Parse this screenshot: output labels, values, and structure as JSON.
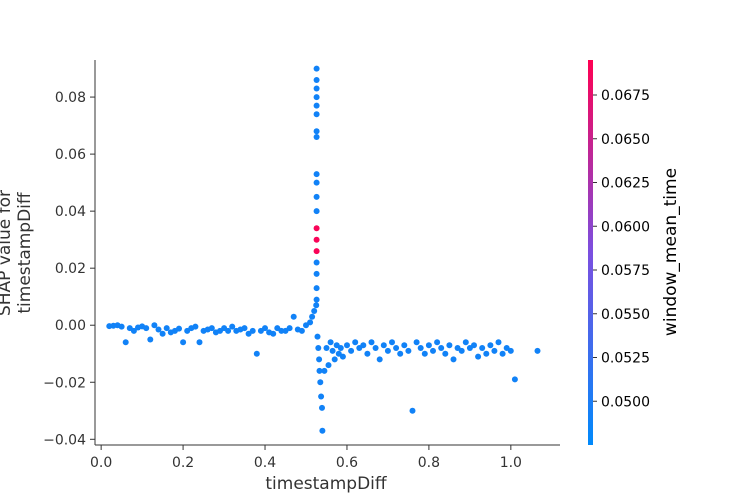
{
  "chart_data": {
    "type": "scatter",
    "title": "",
    "xlabel": "timestampDiff",
    "ylabel": "SHAP value for\ntimestampDiff",
    "xlim": [
      -0.015,
      1.12
    ],
    "ylim": [
      -0.042,
      0.093
    ],
    "x_ticks": [
      0.0,
      0.2,
      0.4,
      0.6,
      0.8,
      1.0
    ],
    "x_tick_labels": [
      "0.0",
      "0.2",
      "0.4",
      "0.6",
      "0.8",
      "1.0"
    ],
    "y_ticks": [
      -0.04,
      -0.02,
      0.0,
      0.02,
      0.04,
      0.06,
      0.08
    ],
    "y_tick_labels": [
      "−0.04",
      "−0.02",
      "0.00",
      "0.02",
      "0.04",
      "0.06",
      "0.08"
    ],
    "grid": false,
    "colorbar": {
      "label": "window_mean_time",
      "range": [
        0.0475,
        0.0695
      ],
      "ticks": [
        0.05,
        0.0525,
        0.055,
        0.0575,
        0.06,
        0.0625,
        0.065,
        0.0675
      ],
      "tick_labels": [
        "0.0500",
        "0.0525",
        "0.0550",
        "0.0575",
        "0.0600",
        "0.0625",
        "0.0650",
        "0.0675"
      ],
      "colors": [
        "#008afb",
        "#ff0052"
      ]
    },
    "points": [
      [
        0.02,
        -0.0003,
        0.049
      ],
      [
        0.03,
        -0.0002,
        0.049
      ],
      [
        0.04,
        0.0,
        0.049
      ],
      [
        0.05,
        -0.0005,
        0.049
      ],
      [
        0.06,
        -0.006,
        0.049
      ],
      [
        0.07,
        -0.001,
        0.049
      ],
      [
        0.08,
        -0.002,
        0.049
      ],
      [
        0.09,
        -0.0008,
        0.049
      ],
      [
        0.1,
        -0.0004,
        0.049
      ],
      [
        0.11,
        -0.001,
        0.049
      ],
      [
        0.12,
        -0.005,
        0.049
      ],
      [
        0.13,
        0.0,
        0.049
      ],
      [
        0.14,
        -0.0015,
        0.049
      ],
      [
        0.15,
        -0.003,
        0.049
      ],
      [
        0.16,
        -0.001,
        0.049
      ],
      [
        0.17,
        -0.0025,
        0.049
      ],
      [
        0.18,
        -0.002,
        0.049
      ],
      [
        0.19,
        -0.0012,
        0.049
      ],
      [
        0.2,
        -0.006,
        0.049
      ],
      [
        0.21,
        -0.002,
        0.049
      ],
      [
        0.22,
        -0.001,
        0.049
      ],
      [
        0.23,
        -0.0005,
        0.049
      ],
      [
        0.24,
        -0.006,
        0.049
      ],
      [
        0.25,
        -0.002,
        0.049
      ],
      [
        0.26,
        -0.0015,
        0.049
      ],
      [
        0.27,
        -0.001,
        0.049
      ],
      [
        0.28,
        -0.0025,
        0.049
      ],
      [
        0.29,
        -0.002,
        0.049
      ],
      [
        0.3,
        -0.001,
        0.049
      ],
      [
        0.31,
        -0.002,
        0.049
      ],
      [
        0.32,
        -0.0005,
        0.049
      ],
      [
        0.33,
        -0.002,
        0.049
      ],
      [
        0.34,
        -0.0015,
        0.049
      ],
      [
        0.35,
        -0.001,
        0.049
      ],
      [
        0.36,
        -0.003,
        0.049
      ],
      [
        0.37,
        -0.002,
        0.049
      ],
      [
        0.38,
        -0.01,
        0.049
      ],
      [
        0.39,
        -0.002,
        0.049
      ],
      [
        0.4,
        -0.001,
        0.049
      ],
      [
        0.41,
        -0.0025,
        0.049
      ],
      [
        0.42,
        -0.003,
        0.049
      ],
      [
        0.43,
        -0.001,
        0.049
      ],
      [
        0.44,
        -0.002,
        0.049
      ],
      [
        0.45,
        -0.002,
        0.049
      ],
      [
        0.46,
        -0.001,
        0.049
      ],
      [
        0.47,
        0.003,
        0.049
      ],
      [
        0.48,
        -0.0015,
        0.049
      ],
      [
        0.49,
        -0.002,
        0.049
      ],
      [
        0.5,
        0.0,
        0.049
      ],
      [
        0.51,
        0.001,
        0.049
      ],
      [
        0.515,
        0.003,
        0.049
      ],
      [
        0.52,
        0.005,
        0.049
      ],
      [
        0.525,
        0.007,
        0.049
      ],
      [
        0.526,
        0.09,
        0.049
      ],
      [
        0.526,
        0.086,
        0.049
      ],
      [
        0.526,
        0.083,
        0.049
      ],
      [
        0.526,
        0.08,
        0.049
      ],
      [
        0.526,
        0.077,
        0.049
      ],
      [
        0.526,
        0.074,
        0.049
      ],
      [
        0.526,
        0.068,
        0.049
      ],
      [
        0.526,
        0.066,
        0.049
      ],
      [
        0.526,
        0.053,
        0.049
      ],
      [
        0.526,
        0.05,
        0.049
      ],
      [
        0.526,
        0.045,
        0.049
      ],
      [
        0.526,
        0.04,
        0.049
      ],
      [
        0.526,
        0.034,
        0.069
      ],
      [
        0.526,
        0.03,
        0.069
      ],
      [
        0.526,
        0.026,
        0.069
      ],
      [
        0.526,
        0.022,
        0.049
      ],
      [
        0.526,
        0.018,
        0.049
      ],
      [
        0.526,
        0.013,
        0.049
      ],
      [
        0.526,
        0.009,
        0.049
      ],
      [
        0.528,
        -0.004,
        0.049
      ],
      [
        0.53,
        -0.008,
        0.049
      ],
      [
        0.532,
        -0.012,
        0.049
      ],
      [
        0.533,
        -0.016,
        0.049
      ],
      [
        0.535,
        -0.02,
        0.049
      ],
      [
        0.537,
        -0.025,
        0.049
      ],
      [
        0.539,
        -0.029,
        0.049
      ],
      [
        0.54,
        -0.037,
        0.049
      ],
      [
        0.545,
        -0.016,
        0.049
      ],
      [
        0.55,
        -0.008,
        0.049
      ],
      [
        0.555,
        -0.014,
        0.049
      ],
      [
        0.56,
        -0.006,
        0.049
      ],
      [
        0.565,
        -0.009,
        0.049
      ],
      [
        0.57,
        -0.012,
        0.049
      ],
      [
        0.575,
        -0.007,
        0.049
      ],
      [
        0.58,
        -0.01,
        0.049
      ],
      [
        0.585,
        -0.008,
        0.049
      ],
      [
        0.59,
        -0.011,
        0.049
      ],
      [
        0.6,
        -0.007,
        0.049
      ],
      [
        0.61,
        -0.009,
        0.049
      ],
      [
        0.62,
        -0.006,
        0.049
      ],
      [
        0.63,
        -0.008,
        0.049
      ],
      [
        0.64,
        -0.007,
        0.049
      ],
      [
        0.65,
        -0.01,
        0.049
      ],
      [
        0.66,
        -0.006,
        0.049
      ],
      [
        0.67,
        -0.008,
        0.049
      ],
      [
        0.68,
        -0.012,
        0.049
      ],
      [
        0.69,
        -0.007,
        0.049
      ],
      [
        0.7,
        -0.009,
        0.049
      ],
      [
        0.71,
        -0.006,
        0.049
      ],
      [
        0.72,
        -0.008,
        0.049
      ],
      [
        0.73,
        -0.01,
        0.049
      ],
      [
        0.74,
        -0.007,
        0.049
      ],
      [
        0.75,
        -0.009,
        0.049
      ],
      [
        0.76,
        -0.03,
        0.049
      ],
      [
        0.77,
        -0.006,
        0.049
      ],
      [
        0.78,
        -0.008,
        0.049
      ],
      [
        0.79,
        -0.01,
        0.049
      ],
      [
        0.8,
        -0.007,
        0.049
      ],
      [
        0.81,
        -0.009,
        0.049
      ],
      [
        0.82,
        -0.006,
        0.049
      ],
      [
        0.83,
        -0.008,
        0.049
      ],
      [
        0.84,
        -0.01,
        0.049
      ],
      [
        0.85,
        -0.007,
        0.049
      ],
      [
        0.86,
        -0.012,
        0.049
      ],
      [
        0.87,
        -0.008,
        0.049
      ],
      [
        0.88,
        -0.009,
        0.049
      ],
      [
        0.89,
        -0.006,
        0.049
      ],
      [
        0.9,
        -0.008,
        0.049
      ],
      [
        0.91,
        -0.007,
        0.049
      ],
      [
        0.92,
        -0.011,
        0.049
      ],
      [
        0.93,
        -0.008,
        0.049
      ],
      [
        0.94,
        -0.01,
        0.049
      ],
      [
        0.95,
        -0.007,
        0.049
      ],
      [
        0.96,
        -0.009,
        0.049
      ],
      [
        0.97,
        -0.006,
        0.049
      ],
      [
        0.98,
        -0.01,
        0.049
      ],
      [
        0.99,
        -0.008,
        0.049
      ],
      [
        1.0,
        -0.009,
        0.049
      ],
      [
        1.01,
        -0.019,
        0.049
      ],
      [
        1.065,
        -0.009,
        0.049
      ]
    ]
  }
}
